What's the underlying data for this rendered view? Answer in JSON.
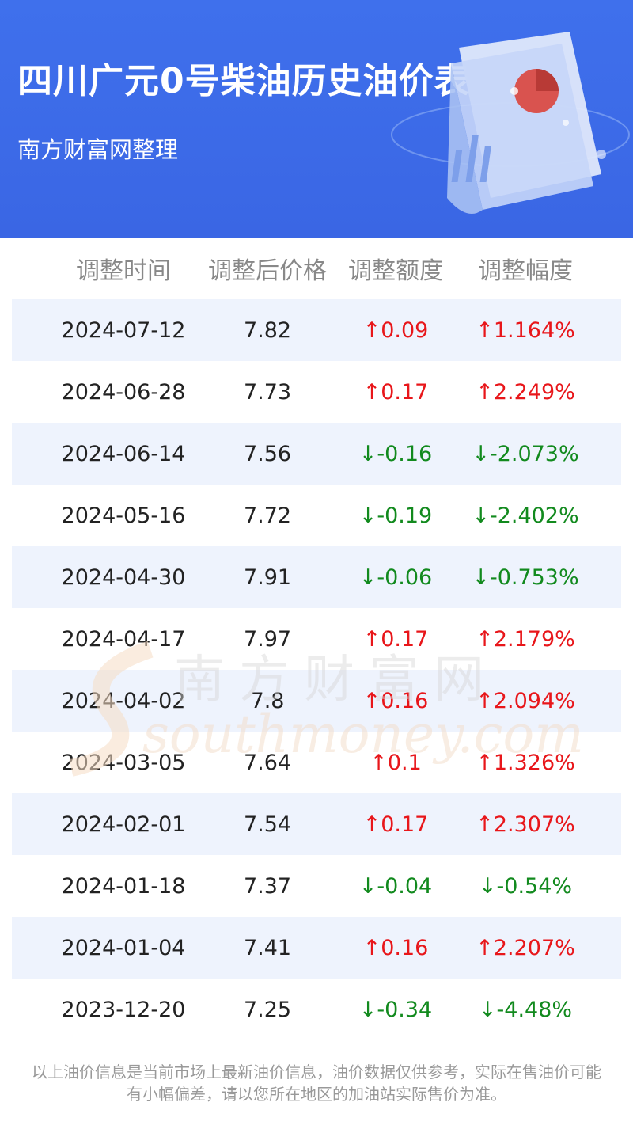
{
  "header": {
    "title": "四川广元0号柴油历史油价表",
    "subtitle": "南方财富网整理"
  },
  "columns": [
    "调整时间",
    "调整后价格",
    "调整额度",
    "调整幅度"
  ],
  "rows": [
    {
      "date": "2024-07-12",
      "price": "7.82",
      "change": "↑0.09",
      "pct": "↑1.164%",
      "dir": "up"
    },
    {
      "date": "2024-06-28",
      "price": "7.73",
      "change": "↑0.17",
      "pct": "↑2.249%",
      "dir": "up"
    },
    {
      "date": "2024-06-14",
      "price": "7.56",
      "change": "↓-0.16",
      "pct": "↓-2.073%",
      "dir": "down"
    },
    {
      "date": "2024-05-16",
      "price": "7.72",
      "change": "↓-0.19",
      "pct": "↓-2.402%",
      "dir": "down"
    },
    {
      "date": "2024-04-30",
      "price": "7.91",
      "change": "↓-0.06",
      "pct": "↓-0.753%",
      "dir": "down"
    },
    {
      "date": "2024-04-17",
      "price": "7.97",
      "change": "↑0.17",
      "pct": "↑2.179%",
      "dir": "up"
    },
    {
      "date": "2024-04-02",
      "price": "7.8",
      "change": "↑0.16",
      "pct": "↑2.094%",
      "dir": "up"
    },
    {
      "date": "2024-03-05",
      "price": "7.64",
      "change": "↑0.1",
      "pct": "↑1.326%",
      "dir": "up"
    },
    {
      "date": "2024-02-01",
      "price": "7.54",
      "change": "↑0.17",
      "pct": "↑2.307%",
      "dir": "up"
    },
    {
      "date": "2024-01-18",
      "price": "7.37",
      "change": "↓-0.04",
      "pct": "↓-0.54%",
      "dir": "down"
    },
    {
      "date": "2024-01-04",
      "price": "7.41",
      "change": "↑0.16",
      "pct": "↑2.207%",
      "dir": "up"
    },
    {
      "date": "2023-12-20",
      "price": "7.25",
      "change": "↓-0.34",
      "pct": "↓-4.48%",
      "dir": "down"
    }
  ],
  "watermark": {
    "cn": "南方财富网",
    "en": "southmoney.com"
  },
  "footer": {
    "line1": "以上油价信息是当前市场上最新油价信息，油价数据仅供参考，实际在售油价可能",
    "line2": "有小幅偏差，请以您所在地区的加油站实际售价为准。"
  },
  "colors": {
    "header_bg": "#3f70ec",
    "row_shade": "#eef3fd",
    "up": "#e8161a",
    "down": "#128a1e"
  }
}
